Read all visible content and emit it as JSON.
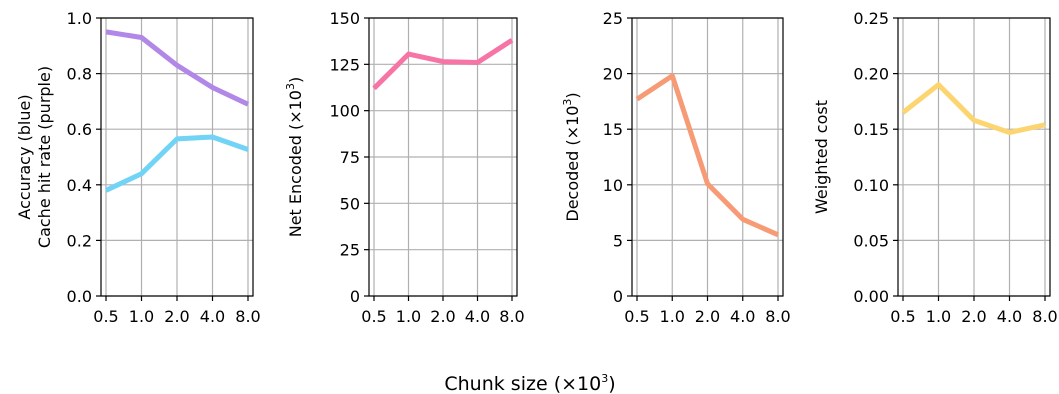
{
  "figure": {
    "xlabel_main": "Chunk size (×10",
    "xlabel_sup": "3",
    "xlabel_end": ")"
  },
  "chart_data": [
    {
      "type": "line",
      "categories": [
        "0.5",
        "1.0",
        "2.0",
        "4.0",
        "8.0"
      ],
      "series": [
        {
          "name": "",
          "values": [
            0.95,
            0.93,
            0.83,
            0.75,
            0.69
          ],
          "color": "#b187e8"
        },
        {
          "name": "",
          "values": [
            0.38,
            0.44,
            0.565,
            0.572,
            0.527
          ],
          "color": "#71d3f5"
        }
      ],
      "ylabel_lines": [
        "Accuracy (blue)",
        "Cache hit rate (purple)"
      ],
      "ylabel_sup": "",
      "ylim": [
        0,
        1.0
      ],
      "yticks": [
        "0.0",
        "0.2",
        "0.4",
        "0.6",
        "0.8",
        "1.0"
      ],
      "grid": true
    },
    {
      "type": "line",
      "categories": [
        "0.5",
        "1.0",
        "2.0",
        "4.0",
        "8.0"
      ],
      "series": [
        {
          "name": "",
          "values": [
            112,
            130.5,
            126.5,
            126,
            138
          ],
          "color": "#f774a6"
        }
      ],
      "ylabel_lines": [
        "Net Encoded (×10"
      ],
      "ylabel_sup": "3",
      "ylabel_end": ")",
      "ylim": [
        0,
        150
      ],
      "yticks": [
        "0",
        "25",
        "50",
        "75",
        "100",
        "125",
        "150"
      ],
      "grid": true
    },
    {
      "type": "line",
      "categories": [
        "0.5",
        "1.0",
        "2.0",
        "4.0",
        "8.0"
      ],
      "series": [
        {
          "name": "",
          "values": [
            17.7,
            19.8,
            10.1,
            6.9,
            5.5
          ],
          "color": "#f79b76"
        }
      ],
      "ylabel_lines": [
        "Decoded (×10"
      ],
      "ylabel_sup": "3",
      "ylabel_end": ")",
      "ylim": [
        0,
        25
      ],
      "yticks": [
        "0",
        "5",
        "10",
        "15",
        "20",
        "25"
      ],
      "grid": true
    },
    {
      "type": "line",
      "categories": [
        "0.5",
        "1.0",
        "2.0",
        "4.0",
        "8.0"
      ],
      "series": [
        {
          "name": "",
          "values": [
            0.165,
            0.19,
            0.158,
            0.147,
            0.154
          ],
          "color": "#fdd570"
        }
      ],
      "ylabel_lines": [
        "Weighted cost"
      ],
      "ylabel_sup": "",
      "ylim": [
        0,
        0.25
      ],
      "yticks": [
        "0.00",
        "0.05",
        "0.10",
        "0.15",
        "0.20",
        "0.25"
      ],
      "grid": true
    }
  ]
}
